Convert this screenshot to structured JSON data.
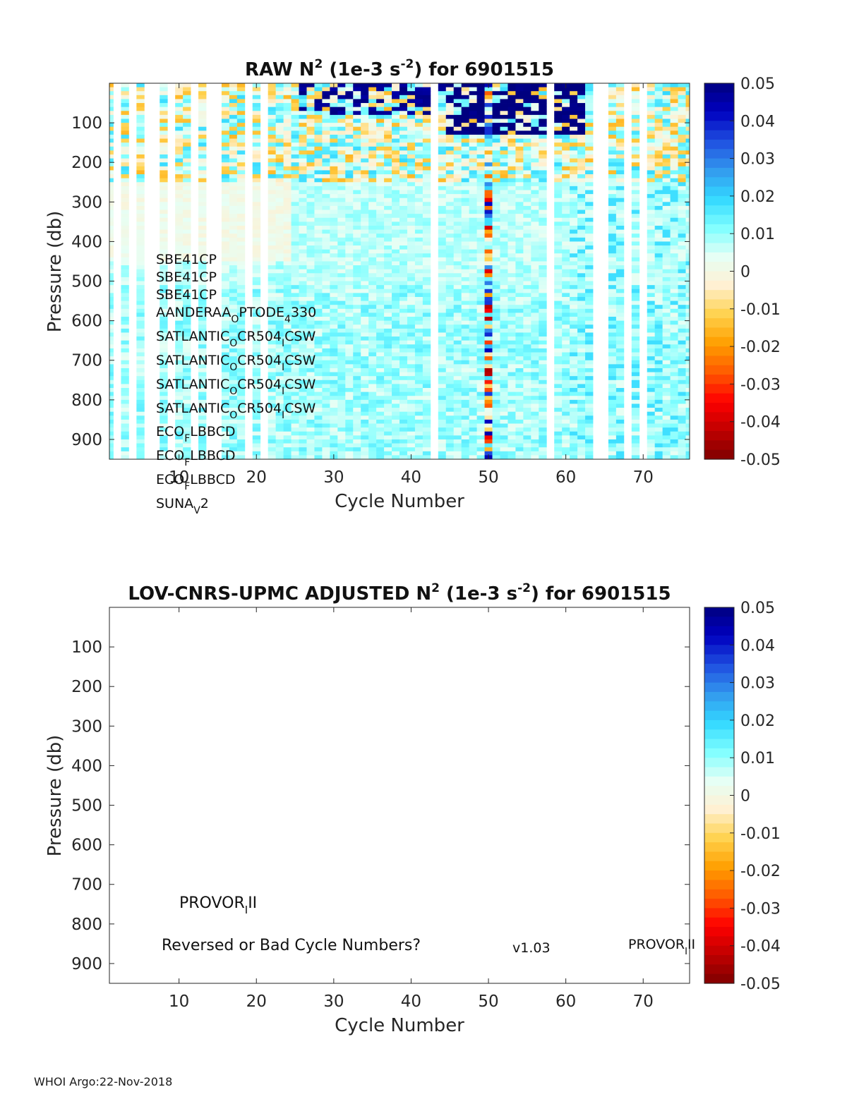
{
  "footer": "WHOI Argo:22-Nov-2018",
  "colors": {
    "colormap": [
      "#800000",
      "#c00000",
      "#ff0000",
      "#ff5a00",
      "#ff9f00",
      "#ffd24d",
      "#fff0d2",
      "#e6fff5",
      "#80ffff",
      "#33d9ff",
      "#3399ee",
      "#1f4fe0",
      "#0000c0",
      "#00007f"
    ],
    "missing": "#ffffff",
    "axis": "#262626"
  },
  "chart_data": [
    {
      "type": "heatmap",
      "title_main": "RAW N",
      "title_sup": "2",
      "title_units_pre": " (1e-3 s",
      "title_units_sup": "-2",
      "title_units_post": ") for 6901515",
      "xlabel": "Cycle Number",
      "ylabel": "Pressure (db)",
      "xlim": [
        1,
        76
      ],
      "ylim": [
        0,
        950
      ],
      "y_reversed": true,
      "xticks": [
        10,
        20,
        30,
        40,
        50,
        60,
        70
      ],
      "yticks": [
        100,
        200,
        300,
        400,
        500,
        600,
        700,
        800,
        900
      ],
      "clim": [
        -0.05,
        0.05
      ],
      "colorbar_ticks": [
        "0.05",
        "0.04",
        "0.03",
        "0.02",
        "0.01",
        "0",
        "-0.01",
        "-0.02",
        "-0.03",
        "-0.04",
        "-0.05"
      ],
      "missing_cycles": [
        2,
        4,
        6,
        7,
        9,
        12,
        14,
        15,
        19,
        21,
        43,
        58,
        64,
        65,
        68,
        70
      ],
      "features": {
        "near_surface_noise_depth": 250,
        "strong_stratification_cycles": [
          45,
          62
        ],
        "strong_stratification_depth": 130,
        "noisy_cycle": 50,
        "deep_value_range": [
          0.003,
          0.015
        ]
      },
      "annotations": [
        {
          "base": "SBE41CP",
          "sub": "",
          "post": ""
        },
        {
          "base": "SBE41CP",
          "sub": "",
          "post": ""
        },
        {
          "base": "SBE41CP",
          "sub": "",
          "post": ""
        },
        {
          "base": "AANDERAA",
          "sub": "O",
          "post": "PTODE",
          "sub2": "4",
          "post2": "330"
        },
        {
          "base": "SATLANTIC",
          "sub": "O",
          "post": "CR504",
          "sub2": "I",
          "post2": "CSW"
        },
        {
          "base": "SATLANTIC",
          "sub": "O",
          "post": "CR504",
          "sub2": "I",
          "post2": "CSW"
        },
        {
          "base": "SATLANTIC",
          "sub": "O",
          "post": "CR504",
          "sub2": "I",
          "post2": "CSW"
        },
        {
          "base": "SATLANTIC",
          "sub": "O",
          "post": "CR504",
          "sub2": "I",
          "post2": "CSW"
        },
        {
          "base": "ECO",
          "sub": "F",
          "post": "LBBCD"
        },
        {
          "base": "ECO",
          "sub": "F",
          "post": "LBBCD"
        },
        {
          "base": "ECO",
          "sub": "F",
          "post": "LBBCD"
        },
        {
          "base": "SUNA",
          "sub": "V",
          "post": "2"
        }
      ]
    },
    {
      "type": "heatmap",
      "title_main": "LOV-CNRS-UPMC  ADJUSTED N",
      "title_sup": "2",
      "title_units_pre": " (1e-3 s",
      "title_units_sup": "-2",
      "title_units_post": ") for 6901515",
      "xlabel": "Cycle Number",
      "ylabel": "Pressure (db)",
      "xlim": [
        1,
        76
      ],
      "ylim": [
        0,
        950
      ],
      "y_reversed": true,
      "xticks": [
        10,
        20,
        30,
        40,
        50,
        60,
        70
      ],
      "yticks": [
        100,
        200,
        300,
        400,
        500,
        600,
        700,
        800,
        900
      ],
      "clim": [
        -0.05,
        0.05
      ],
      "colorbar_ticks": [
        "0.05",
        "0.04",
        "0.03",
        "0.02",
        "0.01",
        "0",
        "-0.01",
        "-0.02",
        "-0.03",
        "-0.04",
        "-0.05"
      ],
      "values": [],
      "platform_label": {
        "base": "PROVOR",
        "sub": "I",
        "post": "II"
      },
      "message": "Reversed or Bad Cycle Numbers?",
      "version": "v1.03",
      "platform_label_right": {
        "base": "PROVOR",
        "sub": "I",
        "post": "II"
      }
    }
  ]
}
